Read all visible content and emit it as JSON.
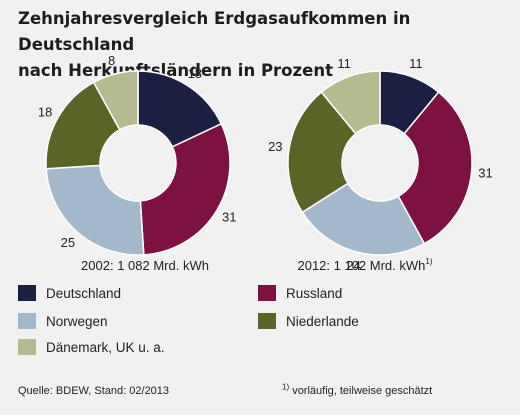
{
  "title_line1": "Zehnjahresvergleich Erdgasaufkommen in Deutschland",
  "title_line2": "nach Herkunftsländern in Prozent",
  "colors": {
    "Deutschland": "#1c1f44",
    "Russland": "#7d1142",
    "Norwegen": "#a4b8cc",
    "Niederlande": "#5b6427",
    "Dänemark, UK u. a.": "#b5bb8f"
  },
  "chart_data": [
    {
      "type": "pie",
      "variant": "donut",
      "caption": "2002: 1 082 Mrd. kWh",
      "caption_sup": "",
      "slices": [
        {
          "label": "Deutschland",
          "value": 18
        },
        {
          "label": "Russland",
          "value": 31
        },
        {
          "label": "Norwegen",
          "value": 25
        },
        {
          "label": "Niederlande",
          "value": 18
        },
        {
          "label": "Dänemark, UK u. a.",
          "value": 8
        }
      ]
    },
    {
      "type": "pie",
      "variant": "donut",
      "caption": "2012: 1 102 Mrd. kWh",
      "caption_sup": "1)",
      "slices": [
        {
          "label": "Deutschland",
          "value": 11
        },
        {
          "label": "Russland",
          "value": 31
        },
        {
          "label": "Norwegen",
          "value": 24
        },
        {
          "label": "Niederlande",
          "value": 23
        },
        {
          "label": "Dänemark, UK u. a.",
          "value": 11
        }
      ]
    }
  ],
  "legend": [
    {
      "label": "Deutschland"
    },
    {
      "label": "Russland"
    },
    {
      "label": "Norwegen"
    },
    {
      "label": "Niederlande"
    },
    {
      "label": "Dänemark, UK u. a."
    }
  ],
  "footer": {
    "source": "Quelle: BDEW, Stand: 02/2013",
    "note_mark": "1)",
    "note_text": "vorläufig, teilweise geschätzt"
  }
}
